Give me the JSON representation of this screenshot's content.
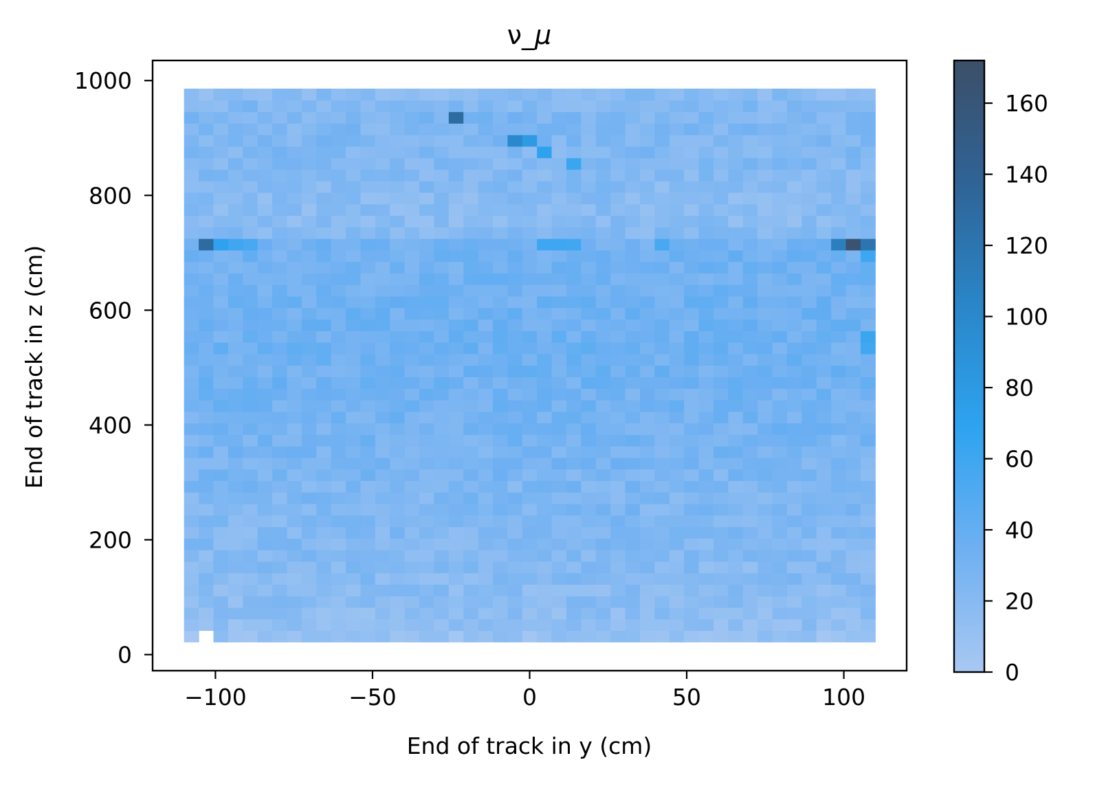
{
  "chart_data": {
    "type": "heatmap",
    "title_prefix": "ν_",
    "title_symbol": "μ",
    "xlabel": "End of track in y (cm)",
    "ylabel": "End of track in z (cm)",
    "xlim": [
      -120,
      120
    ],
    "ylim": [
      -28,
      1035
    ],
    "x_ticks": [
      -100,
      -50,
      0,
      50,
      100
    ],
    "x_tick_labels": [
      "−100",
      "−50",
      "0",
      "50",
      "100"
    ],
    "y_ticks": [
      0,
      200,
      400,
      600,
      800,
      1000
    ],
    "y_tick_labels": [
      "0",
      "200",
      "400",
      "600",
      "800",
      "1000"
    ],
    "colorbar": {
      "range": [
        0,
        172
      ],
      "ticks": [
        0,
        20,
        40,
        60,
        80,
        100,
        120,
        140,
        160
      ],
      "tick_labels": [
        "0",
        "20",
        "40",
        "60",
        "80",
        "100",
        "120",
        "140",
        "160"
      ],
      "colors": [
        "#a8c8f2",
        "#6fb0f2",
        "#2ea3f0",
        "#2a86c8",
        "#2f6396",
        "#3c4f68"
      ]
    },
    "grid": false,
    "bins": {
      "x_range": [
        -110,
        110
      ],
      "z_range": [
        22,
        986
      ],
      "nx": 47,
      "nz": 48,
      "row_values": [
        10,
        14,
        16,
        17,
        18,
        19,
        20,
        21,
        22,
        22,
        23,
        24,
        24,
        25,
        26,
        27,
        28,
        29,
        30,
        30,
        31,
        31,
        32,
        32,
        33,
        33,
        33,
        33,
        33,
        32,
        32,
        31,
        31,
        32,
        30,
        20,
        18,
        18,
        19,
        20,
        21,
        22,
        23,
        24,
        24,
        24,
        22,
        18
      ],
      "hot_bins": [
        {
          "y": -105,
          "z": 714,
          "value": 130
        },
        {
          "y": -100,
          "z": 714,
          "value": 70
        },
        {
          "y": -95,
          "z": 714,
          "value": 60
        },
        {
          "y": -87,
          "z": 714,
          "value": 55
        },
        {
          "y": 5,
          "z": 714,
          "value": 60
        },
        {
          "y": 10,
          "z": 714,
          "value": 60
        },
        {
          "y": 15,
          "z": 714,
          "value": 58
        },
        {
          "y": 40,
          "z": 714,
          "value": 55
        },
        {
          "y": 98,
          "z": 714,
          "value": 110
        },
        {
          "y": 103,
          "z": 714,
          "value": 165
        },
        {
          "y": 108,
          "z": 714,
          "value": 120
        },
        {
          "y": 108,
          "z": 694,
          "value": 60
        },
        {
          "y": -25,
          "z": 934,
          "value": 130
        },
        {
          "y": -5,
          "z": 894,
          "value": 100
        },
        {
          "y": 0,
          "z": 894,
          "value": 80
        },
        {
          "y": 5,
          "z": 874,
          "value": 70
        },
        {
          "y": 15,
          "z": 854,
          "value": 62
        },
        {
          "y": 108,
          "z": 554,
          "value": 62
        },
        {
          "y": 108,
          "z": 534,
          "value": 58
        }
      ],
      "empty_bins": [
        {
          "y": -103,
          "z": 32
        }
      ]
    }
  }
}
